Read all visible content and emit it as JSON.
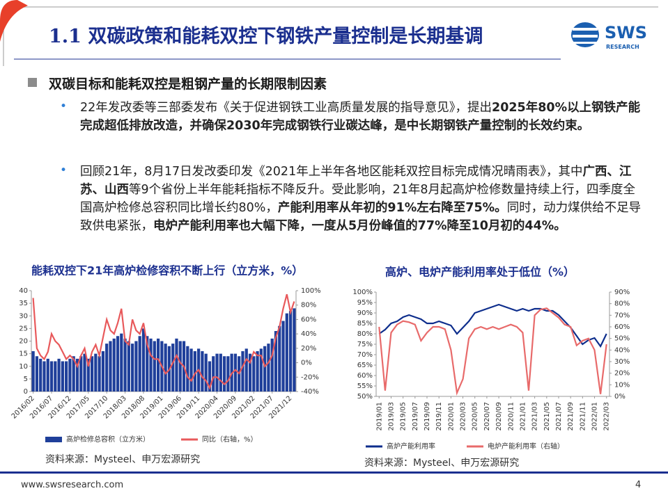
{
  "header": {
    "title": "1.1 双碳政策和能耗双控下钢铁产量控制是长期基调",
    "logo": {
      "text": "SWS",
      "subtext": "RESEARCH"
    }
  },
  "section_title": "双碳目标和能耗双控是粗钢产量的长期限制因素",
  "bullets": [
    {
      "runs": [
        {
          "text": "22年发改委等三部委发布《关于促进钢铁工业高质量发展的指导意见》，提出",
          "bold": false
        },
        {
          "text": "2025年80%以上钢铁产能完成超低排放改造，并确保2030年完成钢铁行业碳达峰，是中长期钢铁产量控制的长效约束。",
          "bold": true
        }
      ]
    },
    {
      "runs": [
        {
          "text": "回顾21年，8月17日发改委印发《2021年上半年各地区能耗双控目标完成情况晴雨表》，其中",
          "bold": false
        },
        {
          "text": "广西、江苏、山西",
          "bold": true
        },
        {
          "text": "等9个省份上半年能耗指标不降反升。受此影响，21年8月起高炉检修数量持续上行，四季度全国高炉检修总容积同比增长约80%，",
          "bold": false
        },
        {
          "text": "产能利用率从年初的91%左右降至75%。",
          "bold": true
        },
        {
          "text": "同时，动力煤供给不足导致供电紧张，",
          "bold": false
        },
        {
          "text": "电炉产能利用率也大幅下降，一度从5月份峰值的77%降至10月初的44%。",
          "bold": true
        }
      ]
    }
  ],
  "chart_data": [
    {
      "type": "bar",
      "title": "能耗双控下21年高炉检修容积不断上行（立方米，%）",
      "categories": [
        "2016/02",
        null,
        null,
        null,
        null,
        "2016/07",
        null,
        null,
        null,
        null,
        "2016/12",
        null,
        null,
        null,
        null,
        "2017/05",
        null,
        null,
        null,
        null,
        "2017/10",
        null,
        null,
        null,
        null,
        "2018/03",
        null,
        null,
        null,
        null,
        "2018/08",
        null,
        null,
        null,
        null,
        "2019/01",
        null,
        null,
        null,
        null,
        "2019/06",
        null,
        null,
        null,
        null,
        "2019/11",
        null,
        null,
        null,
        null,
        "2020/04",
        null,
        null,
        null,
        null,
        "2020/09",
        null,
        null,
        null,
        null,
        "2021/02",
        null,
        null,
        null,
        null,
        "2021/07",
        null,
        null,
        null,
        null,
        "2021/12",
        null
      ],
      "series": [
        {
          "name": "高炉检修总容积（立方米）",
          "type": "bar",
          "color": "#1f3f9a",
          "values": [
            16,
            14,
            13,
            12,
            13,
            12,
            12,
            13,
            12,
            12,
            13,
            14,
            13,
            14,
            15,
            13,
            14,
            15,
            14,
            16,
            19,
            20,
            21,
            22,
            23,
            21,
            20,
            19,
            20,
            22,
            25,
            22,
            21,
            20,
            21,
            20,
            19,
            18,
            19,
            21,
            20,
            20,
            18,
            17,
            16,
            17,
            16,
            15,
            12,
            14,
            15,
            15,
            14,
            14,
            15,
            15,
            14,
            16,
            17,
            15,
            14,
            16,
            17,
            18,
            19,
            21,
            24,
            26,
            28,
            31,
            32,
            33
          ]
        },
        {
          "name": "同比（右轴，%）",
          "type": "line",
          "axis": "y2",
          "color": "#e8595b",
          "values": [
            90,
            20,
            10,
            5,
            15,
            40,
            30,
            25,
            15,
            5,
            10,
            5,
            -5,
            10,
            20,
            -5,
            15,
            25,
            10,
            35,
            60,
            45,
            40,
            55,
            75,
            30,
            25,
            60,
            45,
            40,
            55,
            25,
            10,
            5,
            5,
            -5,
            -15,
            -10,
            0,
            10,
            0,
            -5,
            -20,
            -25,
            -15,
            -10,
            -20,
            -25,
            -35,
            -20,
            -20,
            -25,
            -30,
            -25,
            -15,
            -10,
            -15,
            -5,
            5,
            0,
            15,
            10,
            10,
            -5,
            0,
            10,
            35,
            50,
            75,
            95,
            70,
            85
          ]
        }
      ],
      "ylim": [
        0,
        40
      ],
      "yticks": [
        0,
        5,
        10,
        15,
        20,
        25,
        30,
        35,
        40
      ],
      "y2lim": [
        -40,
        100
      ],
      "y2ticks": [
        {
          "value": -40,
          "label": "-40%"
        },
        {
          "value": -20,
          "label": "-20%"
        },
        {
          "value": 0,
          "label": "0%"
        },
        {
          "value": 20,
          "label": "20%"
        },
        {
          "value": 40,
          "label": "40%"
        },
        {
          "value": 60,
          "label": "60%"
        },
        {
          "value": 80,
          "label": "80%"
        },
        {
          "value": 100,
          "label": "100%"
        }
      ],
      "source": "资料来源：Mysteel、申万宏源研究"
    },
    {
      "type": "line",
      "title": "高炉、电炉产能利用率处于低位（%）",
      "categories": [
        "2019/01",
        null,
        "2019/03",
        null,
        "2019/05",
        null,
        "2019/07",
        null,
        "2019/09",
        null,
        "2019/11",
        null,
        "2020/01",
        null,
        "2020/03",
        null,
        "2020/05",
        null,
        "2020/07",
        null,
        "2020/09",
        null,
        "2020/11",
        null,
        "2021/01",
        null,
        "2021/03",
        null,
        "2021/05",
        null,
        "2021/07",
        null,
        "2021/09",
        null,
        "2021/11",
        null,
        "2022/01",
        null,
        "2022/03"
      ],
      "series": [
        {
          "name": "高炉产能利用率",
          "color": "#0d2d8c",
          "values": [
            80,
            82,
            85,
            86,
            88,
            89,
            88,
            87,
            85,
            85,
            86,
            85,
            84,
            80,
            83,
            86,
            90,
            91,
            92,
            93,
            94,
            93,
            92,
            91,
            92,
            91,
            92,
            92,
            91,
            91,
            89,
            86,
            83,
            79,
            75,
            77,
            78,
            74,
            80
          ]
        },
        {
          "name": "电炉产能利用率（右轴）",
          "axis": "y2",
          "color": "#e86a6a",
          "values": [
            60,
            5,
            55,
            62,
            65,
            64,
            62,
            48,
            55,
            60,
            60,
            58,
            40,
            3,
            15,
            50,
            58,
            60,
            58,
            60,
            58,
            60,
            62,
            60,
            55,
            5,
            70,
            75,
            76,
            72,
            68,
            62,
            60,
            44,
            48,
            50,
            40,
            2,
            45
          ]
        }
      ],
      "ylim": [
        50,
        100
      ],
      "yticks": [
        {
          "value": 50,
          "label": "50%"
        },
        {
          "value": 55,
          "label": "55%"
        },
        {
          "value": 60,
          "label": "60%"
        },
        {
          "value": 65,
          "label": "65%"
        },
        {
          "value": 70,
          "label": "70%"
        },
        {
          "value": 75,
          "label": "75%"
        },
        {
          "value": 80,
          "label": "80%"
        },
        {
          "value": 85,
          "label": "85%"
        },
        {
          "value": 90,
          "label": "90%"
        },
        {
          "value": 95,
          "label": "95%"
        },
        {
          "value": 100,
          "label": "100%"
        }
      ],
      "y2lim": [
        0,
        90
      ],
      "y2ticks": [
        {
          "value": 0,
          "label": "0%"
        },
        {
          "value": 10,
          "label": "10%"
        },
        {
          "value": 20,
          "label": "20%"
        },
        {
          "value": 30,
          "label": "30%"
        },
        {
          "value": 40,
          "label": "40%"
        },
        {
          "value": 50,
          "label": "50%"
        },
        {
          "value": 60,
          "label": "60%"
        },
        {
          "value": 70,
          "label": "70%"
        },
        {
          "value": 80,
          "label": "80%"
        },
        {
          "value": 90,
          "label": "90%"
        }
      ],
      "source": "资料来源：Mysteel、申万宏源研究"
    }
  ],
  "footer": {
    "url": "www.swsresearch.com",
    "page": "4"
  }
}
